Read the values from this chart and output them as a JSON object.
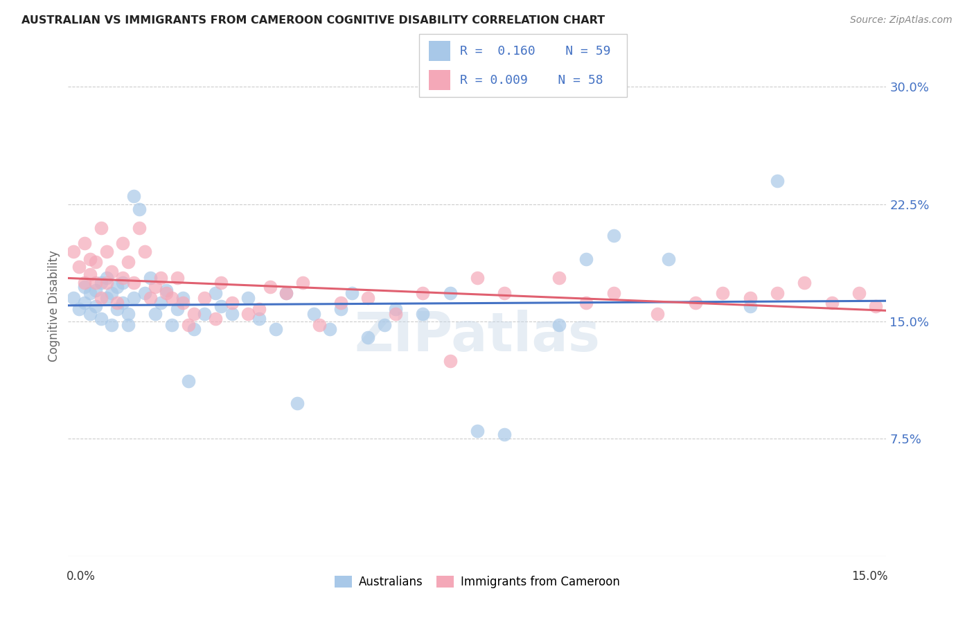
{
  "title": "AUSTRALIAN VS IMMIGRANTS FROM CAMEROON COGNITIVE DISABILITY CORRELATION CHART",
  "source": "Source: ZipAtlas.com",
  "ylabel": "Cognitive Disability",
  "r1": 0.16,
  "n1": 59,
  "r2": 0.009,
  "n2": 58,
  "color_blue": "#a8c8e8",
  "color_pink": "#f4a8b8",
  "line_blue": "#4472c4",
  "line_pink": "#e06070",
  "watermark": "ZIPatlas",
  "background_color": "#ffffff",
  "grid_color": "#cccccc",
  "legend_label1": "Australians",
  "legend_label2": "Immigrants from Cameroon",
  "xlim": [
    0.0,
    0.15
  ],
  "ylim": [
    0.0,
    0.32
  ],
  "ytick_values": [
    0.075,
    0.15,
    0.225,
    0.3
  ],
  "ytick_labels": [
    "7.5%",
    "15.0%",
    "22.5%",
    "30.0%"
  ],
  "aus_x": [
    0.001,
    0.002,
    0.003,
    0.003,
    0.004,
    0.004,
    0.005,
    0.005,
    0.006,
    0.006,
    0.007,
    0.007,
    0.008,
    0.008,
    0.009,
    0.009,
    0.01,
    0.01,
    0.011,
    0.011,
    0.012,
    0.012,
    0.013,
    0.014,
    0.015,
    0.016,
    0.017,
    0.018,
    0.019,
    0.02,
    0.021,
    0.022,
    0.023,
    0.025,
    0.027,
    0.028,
    0.03,
    0.033,
    0.035,
    0.038,
    0.04,
    0.042,
    0.045,
    0.048,
    0.05,
    0.052,
    0.055,
    0.058,
    0.06,
    0.065,
    0.07,
    0.075,
    0.08,
    0.09,
    0.095,
    0.1,
    0.11,
    0.125,
    0.13
  ],
  "aus_y": [
    0.165,
    0.158,
    0.162,
    0.172,
    0.155,
    0.168,
    0.16,
    0.17,
    0.152,
    0.175,
    0.165,
    0.178,
    0.148,
    0.168,
    0.158,
    0.172,
    0.162,
    0.175,
    0.155,
    0.148,
    0.165,
    0.23,
    0.222,
    0.168,
    0.178,
    0.155,
    0.162,
    0.17,
    0.148,
    0.158,
    0.165,
    0.112,
    0.145,
    0.155,
    0.168,
    0.16,
    0.155,
    0.165,
    0.152,
    0.145,
    0.168,
    0.098,
    0.155,
    0.145,
    0.158,
    0.168,
    0.14,
    0.148,
    0.158,
    0.155,
    0.168,
    0.08,
    0.078,
    0.148,
    0.19,
    0.205,
    0.19,
    0.16,
    0.24
  ],
  "cam_x": [
    0.001,
    0.002,
    0.003,
    0.003,
    0.004,
    0.004,
    0.005,
    0.005,
    0.006,
    0.006,
    0.007,
    0.007,
    0.008,
    0.009,
    0.01,
    0.01,
    0.011,
    0.012,
    0.013,
    0.014,
    0.015,
    0.016,
    0.017,
    0.018,
    0.019,
    0.02,
    0.021,
    0.022,
    0.023,
    0.025,
    0.027,
    0.028,
    0.03,
    0.033,
    0.035,
    0.037,
    0.04,
    0.043,
    0.046,
    0.05,
    0.055,
    0.06,
    0.065,
    0.07,
    0.075,
    0.08,
    0.09,
    0.095,
    0.1,
    0.108,
    0.115,
    0.12,
    0.125,
    0.13,
    0.135,
    0.14,
    0.145,
    0.148
  ],
  "cam_y": [
    0.195,
    0.185,
    0.2,
    0.175,
    0.19,
    0.18,
    0.188,
    0.175,
    0.21,
    0.165,
    0.175,
    0.195,
    0.182,
    0.162,
    0.2,
    0.178,
    0.188,
    0.175,
    0.21,
    0.195,
    0.165,
    0.172,
    0.178,
    0.168,
    0.165,
    0.178,
    0.162,
    0.148,
    0.155,
    0.165,
    0.152,
    0.175,
    0.162,
    0.155,
    0.158,
    0.172,
    0.168,
    0.175,
    0.148,
    0.162,
    0.165,
    0.155,
    0.168,
    0.125,
    0.178,
    0.168,
    0.178,
    0.162,
    0.168,
    0.155,
    0.162,
    0.168,
    0.165,
    0.168,
    0.175,
    0.162,
    0.168,
    0.16
  ]
}
